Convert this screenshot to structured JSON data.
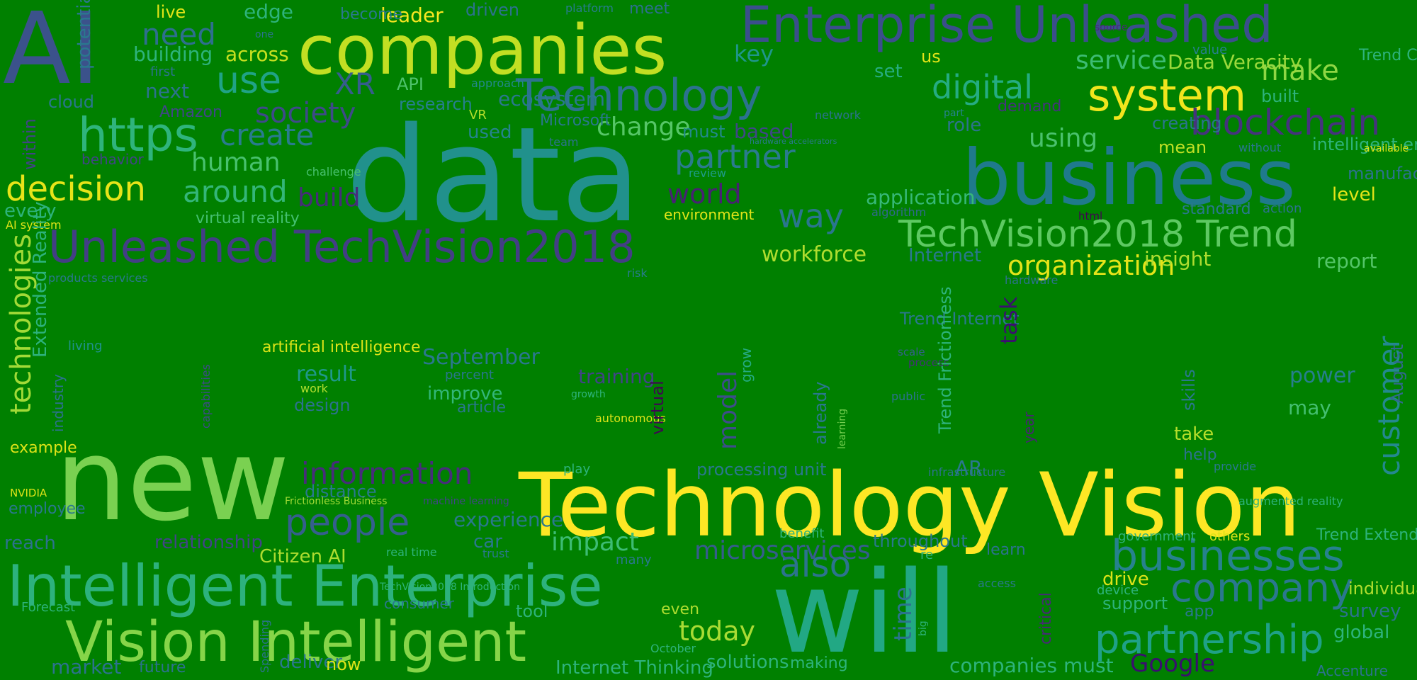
{
  "background_color": "#008000",
  "words": [
    {
      "text": "data",
      "color": "#21918c"
    },
    {
      "text": "new",
      "color": "#7ad151"
    },
    {
      "text": "Technology Vision",
      "color": "#fde725"
    },
    {
      "text": "will",
      "color": "#22a884"
    },
    {
      "text": "companies",
      "color": "#c2df23"
    },
    {
      "text": "business",
      "color": "#1f7a8c"
    },
    {
      "text": "AI",
      "color": "#3b528b"
    },
    {
      "text": "Enterprise Unleashed",
      "color": "#3b4e8c"
    },
    {
      "text": "Intelligent Enterprise",
      "color": "#2db27d"
    },
    {
      "text": "Vision Intelligent",
      "color": "#86d549"
    },
    {
      "text": "Unleashed TechVision2018",
      "color": "#433e85"
    },
    {
      "text": "Technology",
      "color": "#2c728e"
    },
    {
      "text": "https",
      "color": "#2fb47c"
    },
    {
      "text": "system",
      "color": "#f1e51d"
    },
    {
      "text": "TechVision2018 Trend",
      "color": "#5ec962"
    },
    {
      "text": "blockchain",
      "color": "#46327e"
    },
    {
      "text": "businesses",
      "color": "#26828e"
    },
    {
      "text": "company",
      "color": "#2a788e"
    },
    {
      "text": "partnership",
      "color": "#1fa187"
    },
    {
      "text": "people",
      "color": "#355f8d"
    },
    {
      "text": "information",
      "color": "#472d7b"
    },
    {
      "text": "use",
      "color": "#20a386"
    },
    {
      "text": "digital",
      "color": "#25ac82"
    },
    {
      "text": "decision",
      "color": "#e7e419"
    },
    {
      "text": "create",
      "color": "#297b8e"
    },
    {
      "text": "society",
      "color": "#3e4a89"
    },
    {
      "text": "partner",
      "color": "#2a7b8e"
    },
    {
      "text": "way",
      "color": "#2a768e"
    },
    {
      "text": "around",
      "color": "#34b679"
    },
    {
      "text": "world",
      "color": "#482173"
    },
    {
      "text": "need",
      "color": "#2e6f8e"
    },
    {
      "text": "XR",
      "color": "#365d8d"
    },
    {
      "text": "also",
      "color": "#2c738e"
    },
    {
      "text": "impact",
      "color": "#3dbc74"
    },
    {
      "text": "today",
      "color": "#a8db34"
    },
    {
      "text": "customer",
      "color": "#23898e"
    },
    {
      "text": "organization",
      "color": "#e5e419"
    },
    {
      "text": "service",
      "color": "#3dbc74"
    },
    {
      "text": "make",
      "color": "#8fd744"
    },
    {
      "text": "using",
      "color": "#4ac16d"
    },
    {
      "text": "human",
      "color": "#48c16e"
    },
    {
      "text": "change",
      "color": "#56c667"
    },
    {
      "text": "build",
      "color": "#472c7a"
    },
    {
      "text": "key",
      "color": "#1f968b"
    },
    {
      "text": "technologies",
      "color": "#a2da37"
    },
    {
      "text": "experience",
      "color": "#2a788e"
    },
    {
      "text": "Google",
      "color": "#3a0f6e"
    },
    {
      "text": "microservices",
      "color": "#365c8d"
    },
    {
      "text": "time",
      "color": "#2b748e"
    },
    {
      "text": "model",
      "color": "#3d4d8a"
    },
    {
      "text": "based",
      "color": "#404688"
    },
    {
      "text": "workforce",
      "color": "#b0dd2f"
    },
    {
      "text": "insight",
      "color": "#addc30"
    },
    {
      "text": "application",
      "color": "#37b878"
    },
    {
      "text": "building",
      "color": "#2eb37c"
    },
    {
      "text": "across",
      "color": "#c8e020"
    },
    {
      "text": "edge",
      "color": "#2eb37c"
    },
    {
      "text": "leader",
      "color": "#f8e621"
    },
    {
      "text": "become",
      "color": "#2a788e"
    },
    {
      "text": "live",
      "color": "#e2e418"
    },
    {
      "text": "driven",
      "color": "#2c728e"
    },
    {
      "text": "platform",
      "color": "#287c8e"
    },
    {
      "text": "meet",
      "color": "#2d708e"
    },
    {
      "text": "potential",
      "color": "#2a788e"
    },
    {
      "text": "one",
      "color": "#2c728e"
    },
    {
      "text": "source",
      "color": "#482878"
    },
    {
      "text": "value",
      "color": "#277f8e"
    },
    {
      "text": "Trend Citizen",
      "color": "#2eb37c"
    },
    {
      "text": "us",
      "color": "#e2e418"
    },
    {
      "text": "Data Veracity",
      "color": "#9bd93c"
    },
    {
      "text": "set",
      "color": "#27ad81"
    },
    {
      "text": "first",
      "color": "#2c738e"
    },
    {
      "text": "approach",
      "color": "#23898e"
    },
    {
      "text": "API",
      "color": "#4ec36b"
    },
    {
      "text": "next",
      "color": "#2c728e"
    },
    {
      "text": "cloud",
      "color": "#2a768e"
    },
    {
      "text": "within",
      "color": "#414487"
    },
    {
      "text": "Amazon",
      "color": "#404688"
    },
    {
      "text": "research",
      "color": "#277f8e"
    },
    {
      "text": "ecosystem",
      "color": "#2a788e"
    },
    {
      "text": "VR",
      "color": "#b5de2b"
    },
    {
      "text": "Microsoft",
      "color": "#2a778e"
    },
    {
      "text": "built",
      "color": "#2eb37c"
    },
    {
      "text": "network",
      "color": "#2c728e"
    },
    {
      "text": "part",
      "color": "#26828e"
    },
    {
      "text": "demand",
      "color": "#46337f"
    },
    {
      "text": "creating",
      "color": "#2b748e"
    },
    {
      "text": "role",
      "color": "#2c738e"
    },
    {
      "text": "used",
      "color": "#25848e"
    },
    {
      "text": "must",
      "color": "#23898e"
    },
    {
      "text": "team",
      "color": "#2c728e"
    },
    {
      "text": "hardware accelerators",
      "color": "#2a788e"
    },
    {
      "text": "intelligent environments",
      "color": "#2eb37c"
    },
    {
      "text": "mean",
      "color": "#c0df25"
    },
    {
      "text": "without",
      "color": "#2a778e"
    },
    {
      "text": "available",
      "color": "#dde318"
    },
    {
      "text": "behavior",
      "color": "#414487"
    },
    {
      "text": "challenge",
      "color": "#48c16e"
    },
    {
      "text": "review",
      "color": "#1e9b8a"
    },
    {
      "text": "manufacturing",
      "color": "#2c728e"
    },
    {
      "text": "level",
      "color": "#e5e419"
    },
    {
      "text": "every",
      "color": "#2eb37c"
    },
    {
      "text": "virtual reality",
      "color": "#44bf70"
    },
    {
      "text": "environment",
      "color": "#e2e418"
    },
    {
      "text": "algorithm",
      "color": "#31688e"
    },
    {
      "text": "html",
      "color": "#440154"
    },
    {
      "text": "standard",
      "color": "#2a788e"
    },
    {
      "text": "action",
      "color": "#2c728e"
    },
    {
      "text": "AI system",
      "color": "#dde318"
    },
    {
      "text": "Internet",
      "color": "#2a788e"
    },
    {
      "text": "report",
      "color": "#54c568"
    },
    {
      "text": "risk",
      "color": "#287c8e"
    },
    {
      "text": "hardware",
      "color": "#2c728e"
    },
    {
      "text": "August",
      "color": "#31688e"
    },
    {
      "text": "Extended Reality",
      "color": "#2db27d"
    },
    {
      "text": "industry",
      "color": "#2c728e"
    },
    {
      "text": "products services",
      "color": "#2a778e"
    },
    {
      "text": "living",
      "color": "#21918c"
    },
    {
      "text": "capabilities",
      "color": "#3e4a89"
    },
    {
      "text": "artificial intelligence",
      "color": "#dde318"
    },
    {
      "text": "September",
      "color": "#2a788e"
    },
    {
      "text": "percent",
      "color": "#2a768e"
    },
    {
      "text": "result",
      "color": "#1f988b"
    },
    {
      "text": "work",
      "color": "#b0dd2f"
    },
    {
      "text": "improve",
      "color": "#33b679"
    },
    {
      "text": "article",
      "color": "#2a788e"
    },
    {
      "text": "design",
      "color": "#2c728e"
    },
    {
      "text": "training",
      "color": "#414487"
    },
    {
      "text": "growth",
      "color": "#2fb47c"
    },
    {
      "text": "autonomous",
      "color": "#dde318"
    },
    {
      "text": "virtual",
      "color": "#3e0751"
    },
    {
      "text": "grow",
      "color": "#25ab82"
    },
    {
      "text": "already",
      "color": "#2a788e"
    },
    {
      "text": "learning",
      "color": "#78d152"
    },
    {
      "text": "Trend Internet",
      "color": "#2a788e"
    },
    {
      "text": "scale",
      "color": "#355f8d"
    },
    {
      "text": "process",
      "color": "#472d7b"
    },
    {
      "text": "task",
      "color": "#3b0f70"
    },
    {
      "text": "year",
      "color": "#482475"
    },
    {
      "text": "Trend Frictionless",
      "color": "#2eb37c"
    },
    {
      "text": "public",
      "color": "#2c728e"
    },
    {
      "text": "skills",
      "color": "#2a788e"
    },
    {
      "text": "power",
      "color": "#277f8e"
    },
    {
      "text": "may",
      "color": "#44bf70"
    },
    {
      "text": "take",
      "color": "#b5de2b"
    },
    {
      "text": "help",
      "color": "#2c728e"
    },
    {
      "text": "provide",
      "color": "#2a788e"
    },
    {
      "text": "example",
      "color": "#dde318"
    },
    {
      "text": "NVIDIA",
      "color": "#dde318"
    },
    {
      "text": "employee",
      "color": "#2a788e"
    },
    {
      "text": "reach",
      "color": "#2c728e"
    },
    {
      "text": "relationship",
      "color": "#414487"
    },
    {
      "text": "distance",
      "color": "#2a788e"
    },
    {
      "text": "Frictionless Business",
      "color": "#a2da37"
    },
    {
      "text": "machine learning",
      "color": "#414487"
    },
    {
      "text": "play",
      "color": "#2eb37c"
    },
    {
      "text": "processing unit",
      "color": "#2a788e"
    },
    {
      "text": "infrastructure",
      "color": "#2c728e"
    },
    {
      "text": "AR",
      "color": "#2a788e"
    },
    {
      "text": "critical",
      "color": "#482878"
    },
    {
      "text": "augmented reality",
      "color": "#2eb37c"
    },
    {
      "text": "car",
      "color": "#2a788e"
    },
    {
      "text": "trust",
      "color": "#2a788e"
    },
    {
      "text": "benefit",
      "color": "#2eb37c"
    },
    {
      "text": "throughout",
      "color": "#2a788e"
    },
    {
      "text": "government",
      "color": "#2eb37c"
    },
    {
      "text": "others",
      "color": "#dde318"
    },
    {
      "text": "Trend Extended",
      "color": "#2eb37c"
    },
    {
      "text": "Citizen AI",
      "color": "#addc30"
    },
    {
      "text": "real time",
      "color": "#2eb37c"
    },
    {
      "text": "many",
      "color": "#2a788e"
    },
    {
      "text": "learn",
      "color": "#2c728e"
    },
    {
      "text": "re",
      "color": "#2eb37c"
    },
    {
      "text": "drive",
      "color": "#dde318"
    },
    {
      "text": "device",
      "color": "#2eb37c"
    },
    {
      "text": "individual",
      "color": "#b0dd2f"
    },
    {
      "text": "support",
      "color": "#2eb37c"
    },
    {
      "text": "app",
      "color": "#2a788e"
    },
    {
      "text": "survey",
      "color": "#2c728e"
    },
    {
      "text": "global",
      "color": "#2eb37c"
    },
    {
      "text": "access",
      "color": "#2a788e"
    },
    {
      "text": "big",
      "color": "#2eb37c"
    },
    {
      "text": "Forecast",
      "color": "#2eb37c"
    },
    {
      "text": "TechVision2018 Introduction",
      "color": "#2eb37c"
    },
    {
      "text": "consumer",
      "color": "#2a788e"
    },
    {
      "text": "tool",
      "color": "#2eb37c"
    },
    {
      "text": "even",
      "color": "#addc30"
    },
    {
      "text": "October",
      "color": "#2eb37c"
    },
    {
      "text": "Spending",
      "color": "#2c728e"
    },
    {
      "text": "market",
      "color": "#2c728e"
    },
    {
      "text": "future",
      "color": "#2c728e"
    },
    {
      "text": "deliver",
      "color": "#2a788e"
    },
    {
      "text": "now",
      "color": "#dde318"
    },
    {
      "text": "Internet Thinking",
      "color": "#2eb37c"
    },
    {
      "text": "solutions",
      "color": "#2eb37c"
    },
    {
      "text": "making",
      "color": "#2eb37c"
    },
    {
      "text": "companies must",
      "color": "#2eb37c"
    },
    {
      "text": "Accenture",
      "color": "#2c728e"
    },
    {
      "text": "innovation",
      "color": "#3b528b"
    }
  ]
}
